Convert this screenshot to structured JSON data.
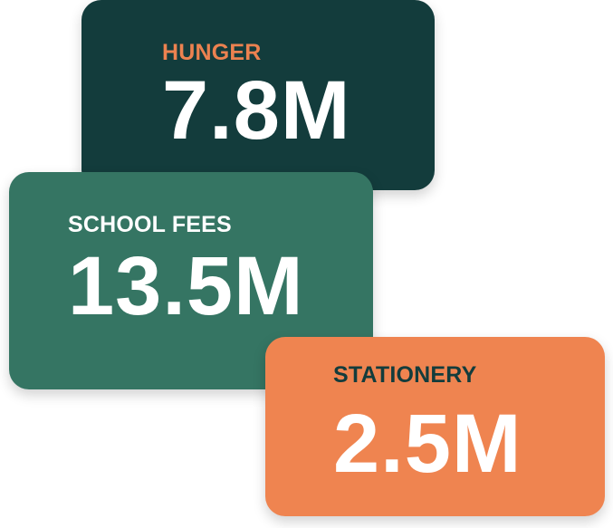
{
  "cards": [
    {
      "label": "HUNGER",
      "value": "7.8M",
      "background": "#133C3C",
      "label_color": "#EC8250",
      "value_color": "#FFFFFF"
    },
    {
      "label": "SCHOOL FEES",
      "value": "13.5M",
      "background": "#357563",
      "label_color": "#FFFFFF",
      "value_color": "#FFFFFF"
    },
    {
      "label": "STATIONERY",
      "value": "2.5M",
      "background": "#EF8450",
      "label_color": "#133C3C",
      "value_color": "#FFFFFF"
    }
  ]
}
